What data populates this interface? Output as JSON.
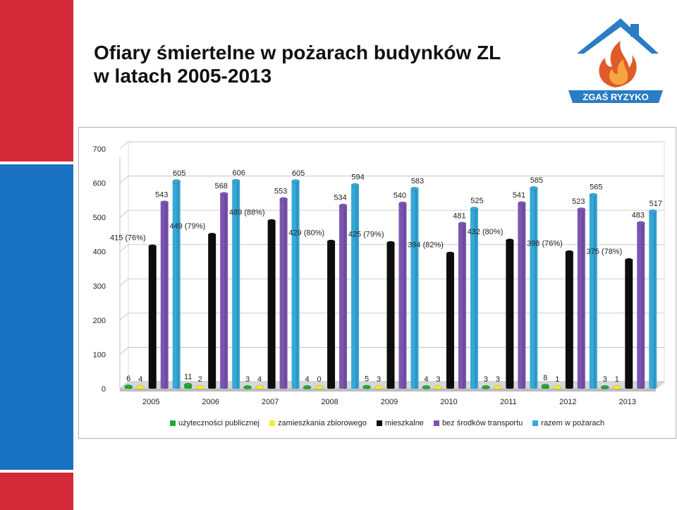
{
  "slide": {
    "title_line1": "Ofiary śmiertelne w pożarach budynków ZL",
    "title_line2": "w latach 2005-2013"
  },
  "logo": {
    "text": "ZGAŚ RYZYKO",
    "icon": "house-flame-logo"
  },
  "chart_data": {
    "type": "bar",
    "categories": [
      "2005",
      "2006",
      "2007",
      "2008",
      "2009",
      "2010",
      "2011",
      "2012",
      "2013"
    ],
    "ylim": [
      0,
      700
    ],
    "yticks": [
      0,
      100,
      200,
      300,
      400,
      500,
      600,
      700
    ],
    "grid": true,
    "legend_position": "bottom",
    "series": [
      {
        "name": "użyteczności publicznej",
        "color": "#22a83a",
        "values": [
          6,
          11,
          3,
          4,
          5,
          4,
          3,
          8,
          3
        ],
        "labels": [
          "6",
          "11",
          "3",
          "4",
          "5",
          "4",
          "3",
          "8",
          "3"
        ]
      },
      {
        "name": "zamieszkania zbiorowego",
        "color": "#f2ef2a",
        "values": [
          4,
          2,
          4,
          0,
          3,
          3,
          3,
          1,
          1
        ],
        "labels": [
          "4",
          "2",
          "4",
          "0",
          "3",
          "3",
          "3",
          "1",
          "1"
        ]
      },
      {
        "name": "mieszkalne",
        "color": "#0d0d0d",
        "values": [
          415,
          449,
          489,
          429,
          425,
          394,
          432,
          398,
          375
        ],
        "labels": [
          "415 (76%)",
          "449 (79%)",
          "489 (88%)",
          "429 (80%)",
          "425 (79%)",
          "394 (82%)",
          "432 (80%)",
          "398 (76%)",
          "375 (78%)"
        ]
      },
      {
        "name": "bez środków transportu",
        "color": "#7b55b0",
        "values": [
          543,
          568,
          553,
          534,
          540,
          481,
          541,
          523,
          483
        ],
        "labels": [
          "543",
          "568",
          "553",
          "534",
          "540",
          "481",
          "541",
          "523",
          "483"
        ]
      },
      {
        "name": "razem w pożarach",
        "color": "#35a9d8",
        "values": [
          605,
          606,
          605,
          594,
          583,
          525,
          585,
          565,
          517
        ],
        "labels": [
          "605",
          "606",
          "605",
          "594",
          "583",
          "525",
          "585",
          "565",
          "517"
        ]
      }
    ]
  }
}
